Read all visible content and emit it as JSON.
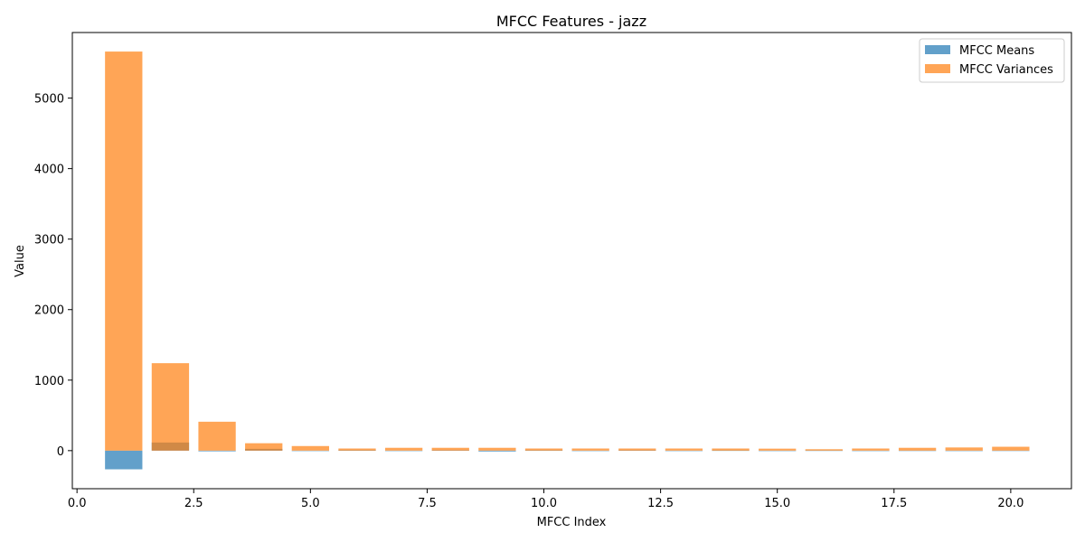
{
  "chart_data": {
    "type": "bar",
    "title": "MFCC Features - jazz",
    "xlabel": "MFCC Index",
    "ylabel": "Value",
    "xlim": [
      -0.1,
      21.3
    ],
    "ylim": [
      -540,
      5930
    ],
    "xticks": [
      0.0,
      2.5,
      5.0,
      7.5,
      10.0,
      12.5,
      15.0,
      17.5,
      20.0
    ],
    "xtick_labels": [
      "0.0",
      "2.5",
      "5.0",
      "7.5",
      "10.0",
      "12.5",
      "15.0",
      "17.5",
      "20.0"
    ],
    "yticks": [
      0,
      1000,
      2000,
      3000,
      4000,
      5000
    ],
    "ytick_labels": [
      "0",
      "1000",
      "2000",
      "3000",
      "4000",
      "5000"
    ],
    "bar_width": 0.8,
    "grid": false,
    "legend_position": "upper right",
    "x": [
      1,
      2,
      3,
      4,
      5,
      6,
      7,
      8,
      9,
      10,
      11,
      12,
      13,
      14,
      15,
      16,
      17,
      18,
      19,
      20
    ],
    "series": [
      {
        "name": "MFCC Means",
        "color": "#1f77b4",
        "alpha": 0.7,
        "values": [
          -265,
          115,
          -10,
          25,
          -5,
          8,
          -3,
          5,
          -12,
          4,
          -6,
          5,
          -4,
          3,
          -3,
          2,
          -2,
          1,
          -3,
          1
        ]
      },
      {
        "name": "MFCC Variances",
        "color": "#ff7f0e",
        "alpha": 0.7,
        "values": [
          5660,
          1240,
          410,
          105,
          65,
          30,
          40,
          40,
          40,
          30,
          30,
          30,
          30,
          30,
          28,
          20,
          30,
          40,
          45,
          55
        ]
      }
    ]
  }
}
